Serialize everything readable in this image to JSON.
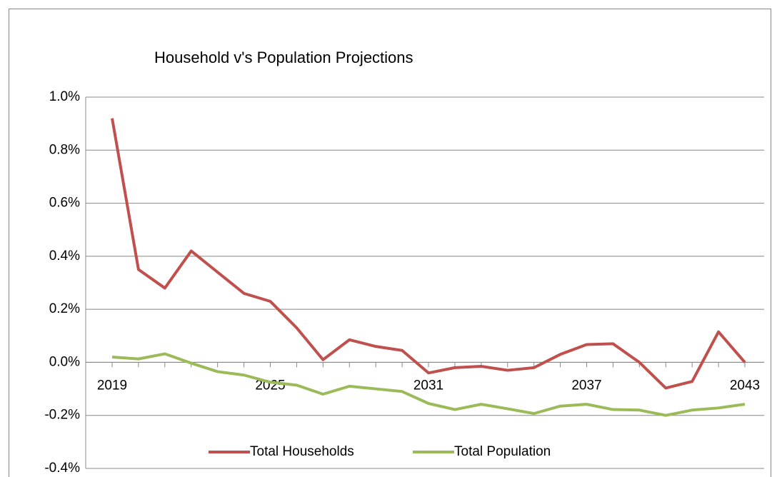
{
  "chart_data": {
    "type": "line",
    "title": "Household v's Population Projections",
    "categories": [
      "2019",
      null,
      null,
      null,
      null,
      null,
      "2025",
      null,
      null,
      null,
      null,
      null,
      "2031",
      null,
      null,
      null,
      null,
      null,
      "2037",
      null,
      null,
      null,
      null,
      null,
      "2043"
    ],
    "series": [
      {
        "name": "Total Households",
        "color": "#c0504d",
        "values": [
          0.92,
          0.35,
          0.28,
          0.42,
          0.34,
          0.26,
          0.23,
          0.13,
          0.01,
          0.085,
          0.06,
          0.045,
          -0.04,
          -0.02,
          -0.015,
          -0.03,
          -0.02,
          0.03,
          0.067,
          0.07,
          0.0,
          -0.097,
          -0.072,
          0.115,
          0.0
        ]
      },
      {
        "name": "Total Population",
        "color": "#9bbb59",
        "values": [
          0.02,
          0.013,
          0.032,
          -0.003,
          -0.035,
          -0.048,
          -0.075,
          -0.086,
          -0.12,
          -0.09,
          -0.1,
          -0.11,
          -0.155,
          -0.178,
          -0.158,
          -0.175,
          -0.193,
          -0.165,
          -0.158,
          -0.178,
          -0.18,
          -0.2,
          -0.18,
          -0.172,
          -0.158
        ]
      }
    ],
    "ylim": [
      -0.4,
      1.0
    ],
    "yticks": [
      {
        "value": -0.4,
        "label": "-0.4%"
      },
      {
        "value": -0.2,
        "label": "-0.2%"
      },
      {
        "value": 0,
        "label": "0.0%"
      },
      {
        "value": 0.2,
        "label": "0.2%"
      },
      {
        "value": 0.4,
        "label": "0.4%"
      },
      {
        "value": 0.6,
        "label": "0.6%"
      },
      {
        "value": 0.8,
        "label": "0.8%"
      },
      {
        "value": 1.0,
        "label": "1.0%"
      }
    ],
    "grid": true,
    "legend": "bottom"
  }
}
